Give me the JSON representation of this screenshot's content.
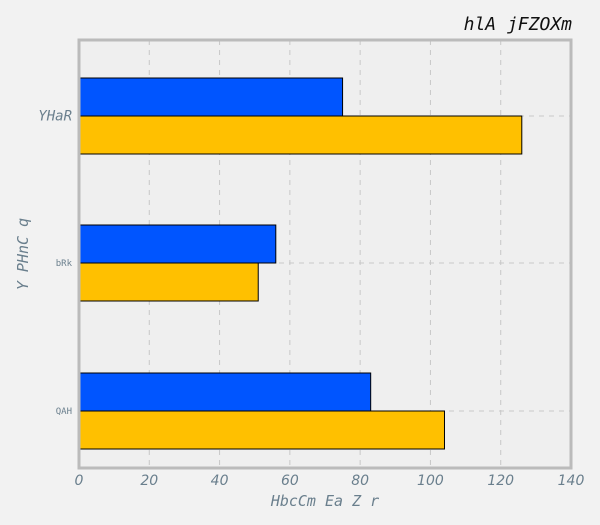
{
  "chart_data": {
    "type": "bar",
    "orientation": "horizontal",
    "title": "hlA jFZOXm",
    "xlabel": "HbcCm Ea  Z r",
    "ylabel": "Y PHnC q",
    "categories": [
      "QAH",
      "bRk",
      "YHaR"
    ],
    "series": [
      {
        "color": "#ffc000",
        "values": [
          104,
          51,
          126
        ]
      },
      {
        "color": "#0055ff",
        "values": [
          83,
          56,
          75
        ]
      }
    ],
    "xlim": [
      0,
      140
    ],
    "xticks": [
      0,
      20,
      40,
      60,
      80,
      100,
      120,
      140
    ],
    "grid": true,
    "legend": "none"
  }
}
